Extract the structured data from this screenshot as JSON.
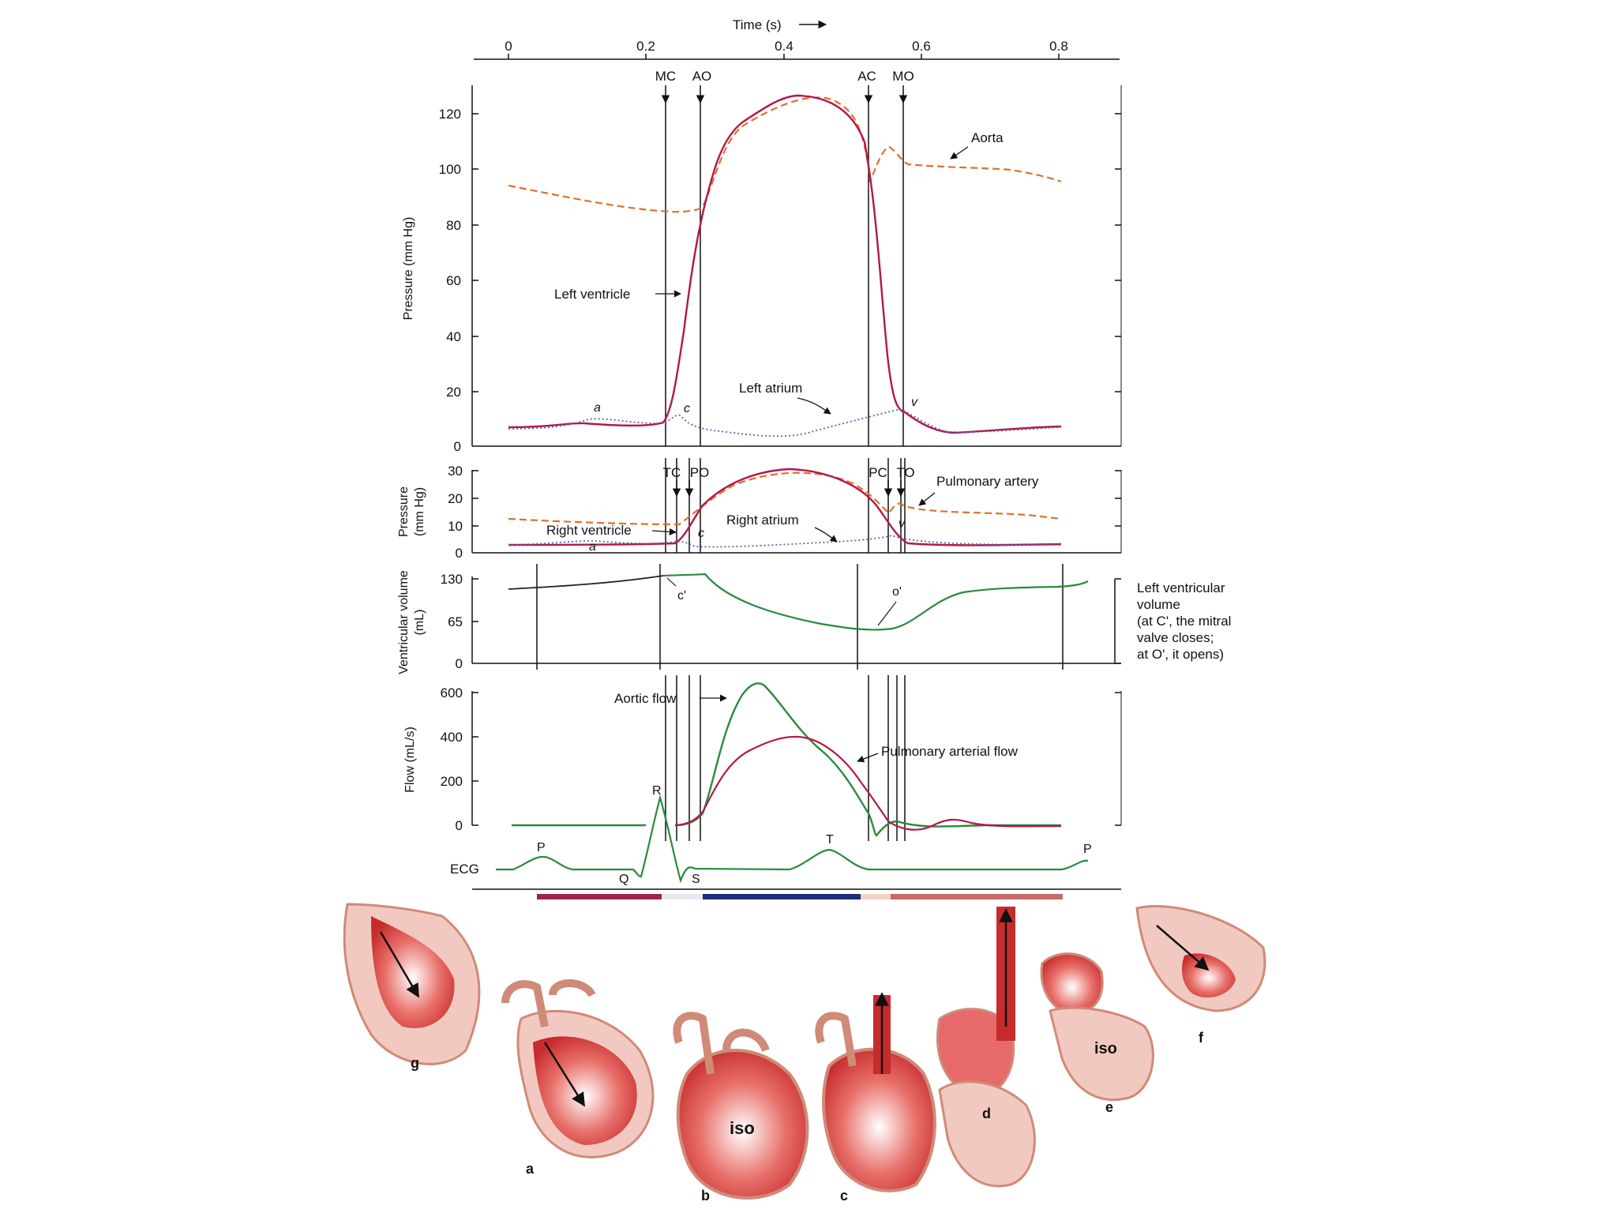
{
  "time_axis": {
    "label": "Time (s)",
    "ticks": [
      "0",
      "0.2",
      "0.4",
      "0.6",
      "0.8"
    ]
  },
  "events_top": [
    "MC",
    "AO",
    "AC",
    "MO"
  ],
  "events_right": [
    "TC",
    "PO",
    "PC",
    "TO"
  ],
  "panels": {
    "left_pressure": {
      "ylabel": "Pressure (mm Hg)",
      "ticks": [
        "0",
        "20",
        "40",
        "60",
        "80",
        "100",
        "120"
      ],
      "labels": {
        "aorta": "Aorta",
        "left_ventricle": "Left ventricle",
        "left_atrium": "Left atrium",
        "a": "a",
        "c": "c",
        "v": "v"
      }
    },
    "right_pressure": {
      "ylabel_1": "Pressure",
      "ylabel_2": "(mm Hg)",
      "ticks": [
        "0",
        "10",
        "20",
        "30"
      ],
      "labels": {
        "pulmonary_artery": "Pulmonary artery",
        "right_atrium": "Right atrium",
        "right_ventricle": "Right ventricle",
        "a": "a",
        "c": "c",
        "v": "v"
      }
    },
    "volume": {
      "ylabel_1": "Ventricular volume",
      "ylabel_2": "(mL)",
      "ticks": [
        "0",
        "65",
        "130"
      ],
      "labels": {
        "c_prime": "c'",
        "o_prime": "o'"
      },
      "note": [
        "Left ventricular",
        "volume",
        "(at C', the mitral",
        "valve closes;",
        "at O', it opens)"
      ]
    },
    "flow": {
      "ylabel": "Flow (mL/s)",
      "ticks": [
        "0",
        "200",
        "400",
        "600"
      ],
      "labels": {
        "aortic_flow": "Aortic flow",
        "pulmonary_flow": "Pulmonary arterial flow"
      }
    },
    "ecg": {
      "label": "ECG",
      "waves": {
        "P1": "P",
        "Q": "Q",
        "R": "R",
        "S": "S",
        "T": "T",
        "P2": "P"
      }
    }
  },
  "phase_bar_colors": [
    "#a0244a",
    "#e8e8f0",
    "#1f2e7a",
    "#f3d2c6",
    "#c86a6a"
  ],
  "heart_panels": {
    "a": "a",
    "b": "b",
    "c": "c",
    "d": "d",
    "e": "e",
    "f": "f",
    "g": "g",
    "iso_b": "iso",
    "iso_e": "iso"
  },
  "colors": {
    "ventricle": "#b5174a",
    "artery": "#e0702a",
    "atrium": "#5566aa",
    "flow": "#2a8a3c",
    "heart": "#cc3333"
  }
}
